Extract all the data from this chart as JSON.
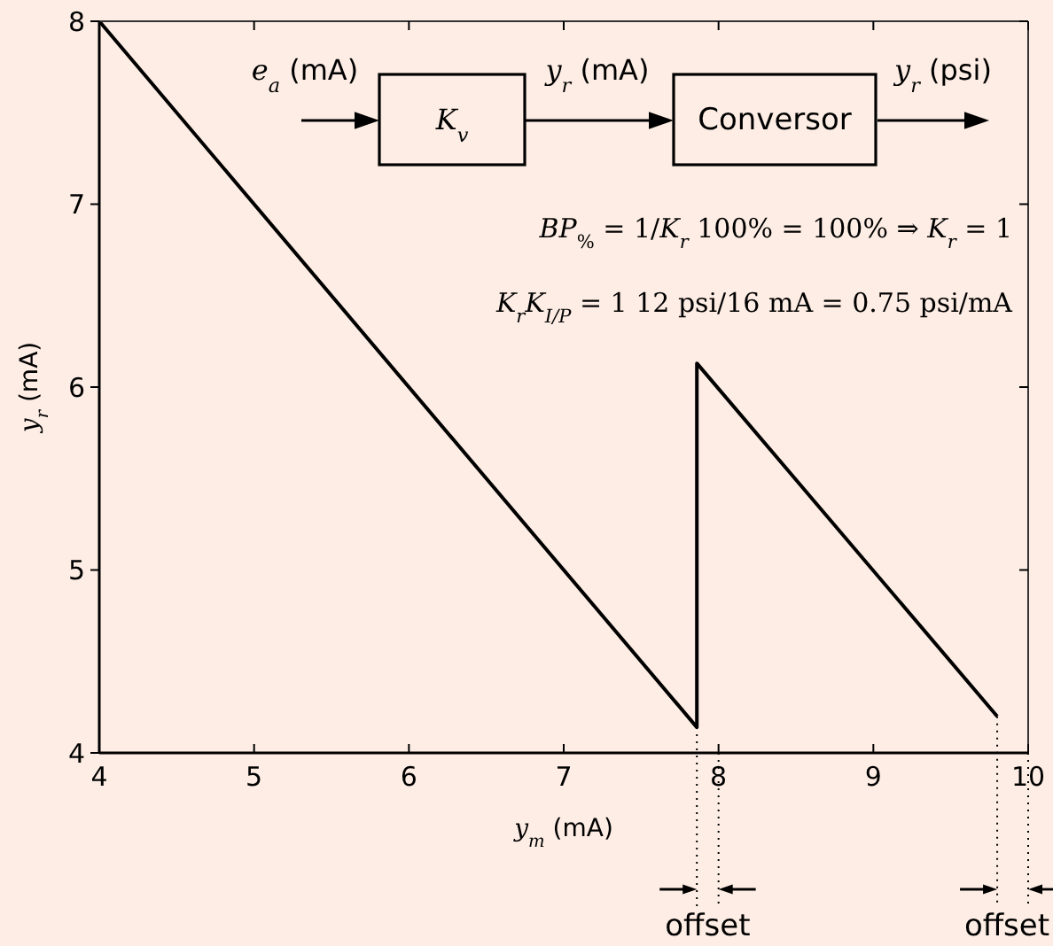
{
  "chart_data": {
    "type": "line",
    "xlabel": "y$_{m}$ (mA)",
    "ylabel": "y$_{r}$ (mA)",
    "x": [
      4,
      7.86,
      7.86,
      9.8
    ],
    "series": [
      {
        "color": "#000000",
        "values": [
          8,
          4.14,
          6.13,
          4.2
        ]
      }
    ],
    "xlim": [
      4,
      10
    ],
    "ylim": [
      4,
      8
    ],
    "xticks": [
      4,
      5,
      6,
      7,
      8,
      9,
      10
    ],
    "yticks": [
      4,
      5,
      6,
      7,
      8
    ],
    "annotations": [
      "e$_{a}$ (mA)",
      "K$_{v}$",
      "y$_{r}$ (mA)",
      "Conversor",
      "y$_{r}$ (psi)",
      "BP$_{%}$ = 1/K$_{r}$ 100% = 100% ⇒ K$_{r}$ = 1",
      "K$_{r}$K$_{I/P}$ = 1 12 psi/16 mA = 0.75 psi/mA",
      {
        "text": "offset",
        "x": 7.86,
        "y": 4.14
      },
      {
        "text": "offset",
        "x": 9.8,
        "y": 4.2
      }
    ]
  }
}
